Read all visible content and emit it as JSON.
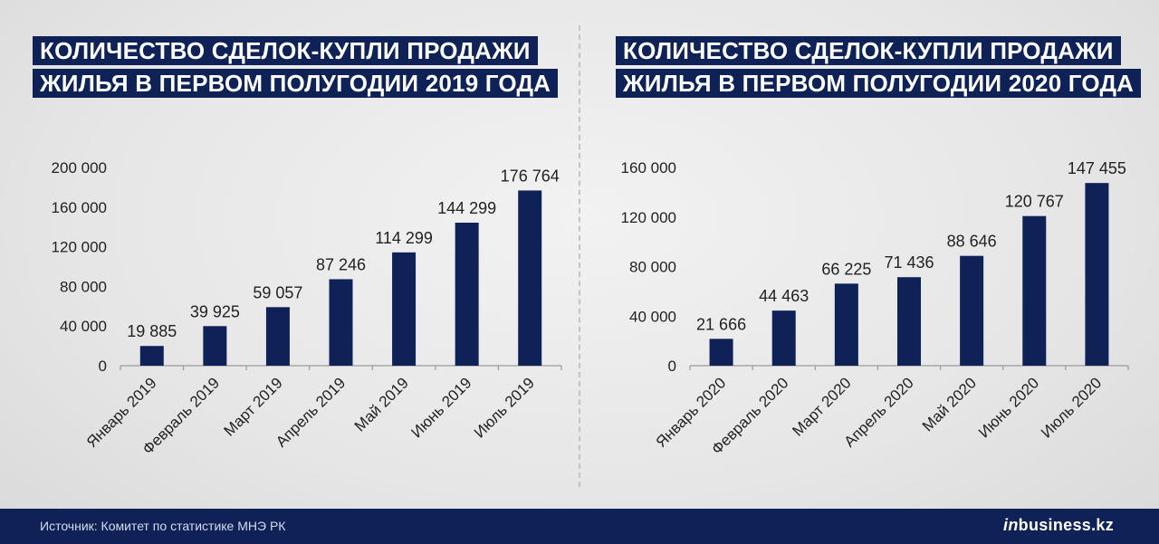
{
  "colors": {
    "bar": "#0f2257",
    "title_bg": "#0f2257",
    "footer_bg": "#0f2257"
  },
  "footer": {
    "source": "Источник: Комитет по статистике МНЭ РК",
    "brand_prefix": "in",
    "brand_main": "business.kz"
  },
  "chart_data": [
    {
      "type": "bar",
      "title_lines": [
        "КОЛИЧЕСТВО СДЕЛОК-КУПЛИ ПРОДАЖИ",
        "ЖИЛЬЯ В ПЕРВОМ ПОЛУГОДИИ 2019 ГОДА"
      ],
      "categories": [
        "Январь 2019",
        "Февраль 2019",
        "Март 2019",
        "Апрель 2019",
        "Май 2019",
        "Июнь 2019",
        "Июль 2019"
      ],
      "values": [
        19885,
        39925,
        59057,
        87246,
        114299,
        144299,
        176764
      ],
      "value_labels": [
        "19 885",
        "39 925",
        "59 057",
        "87 246",
        "114 299",
        "144 299",
        "176 764"
      ],
      "yticks": [
        0,
        40000,
        80000,
        120000,
        160000,
        200000
      ],
      "ytick_labels": [
        "0",
        "40 000",
        "80 000",
        "120 000",
        "160 000",
        "200 000"
      ],
      "ylim": [
        0,
        200000
      ],
      "grid": false
    },
    {
      "type": "bar",
      "title_lines": [
        "КОЛИЧЕСТВО СДЕЛОК-КУПЛИ ПРОДАЖИ",
        "ЖИЛЬЯ В ПЕРВОМ ПОЛУГОДИИ 2020 ГОДА"
      ],
      "categories": [
        "Январь 2020",
        "Февраль 2020",
        "Март 2020",
        "Апрель 2020",
        "Май 2020",
        "Июнь 2020",
        "Июль 2020"
      ],
      "values": [
        21666,
        44463,
        66225,
        71436,
        88646,
        120767,
        147455
      ],
      "value_labels": [
        "21 666",
        "44 463",
        "66 225",
        "71 436",
        "88 646",
        "120 767",
        "147 455"
      ],
      "yticks": [
        0,
        40000,
        80000,
        120000,
        160000
      ],
      "ytick_labels": [
        "0",
        "40 000",
        "80 000",
        "120 000",
        "160 000"
      ],
      "ylim": [
        0,
        160000
      ],
      "grid": false
    }
  ]
}
